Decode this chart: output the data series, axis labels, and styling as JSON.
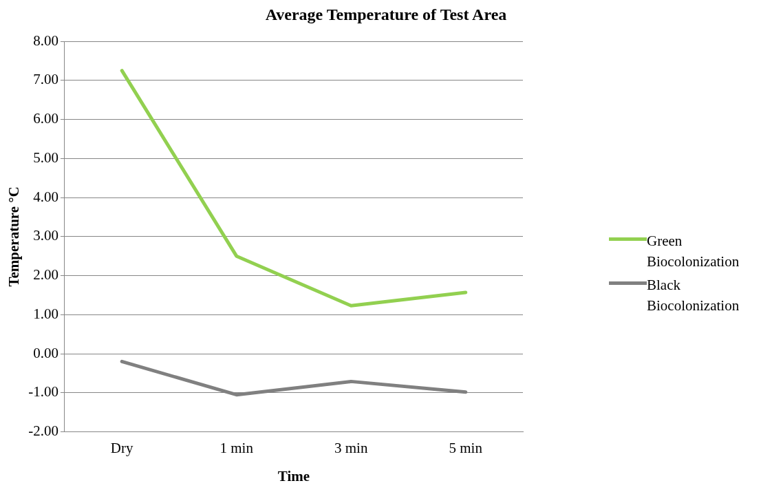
{
  "chart_data": {
    "type": "line",
    "title": "Average Temperature of Test Area",
    "xlabel": "Time",
    "ylabel": "Temperature °C",
    "categories": [
      "Dry",
      "1 min",
      "3 min",
      "5 min"
    ],
    "series": [
      {
        "name": "Green Biocolonization",
        "color": "#92d050",
        "values": [
          7.25,
          2.5,
          1.23,
          1.57
        ]
      },
      {
        "name": "Black Biocolonization",
        "color": "#808080",
        "values": [
          -0.2,
          -1.05,
          -0.71,
          -0.98
        ]
      }
    ],
    "ylim": [
      -2,
      8
    ],
    "yticks": [
      {
        "value": -2,
        "label": "-2.00"
      },
      {
        "value": -1,
        "label": "-1.00"
      },
      {
        "value": 0,
        "label": "0.00"
      },
      {
        "value": 1,
        "label": "1.00"
      },
      {
        "value": 2,
        "label": "2.00"
      },
      {
        "value": 3,
        "label": "3.00"
      },
      {
        "value": 4,
        "label": "4.00"
      },
      {
        "value": 5,
        "label": "5.00"
      },
      {
        "value": 6,
        "label": "6.00"
      },
      {
        "value": 7,
        "label": "7.00"
      },
      {
        "value": 8,
        "label": "8.00"
      }
    ],
    "grid": "y",
    "legend": "right",
    "marker": "none",
    "line_style": "solid"
  }
}
